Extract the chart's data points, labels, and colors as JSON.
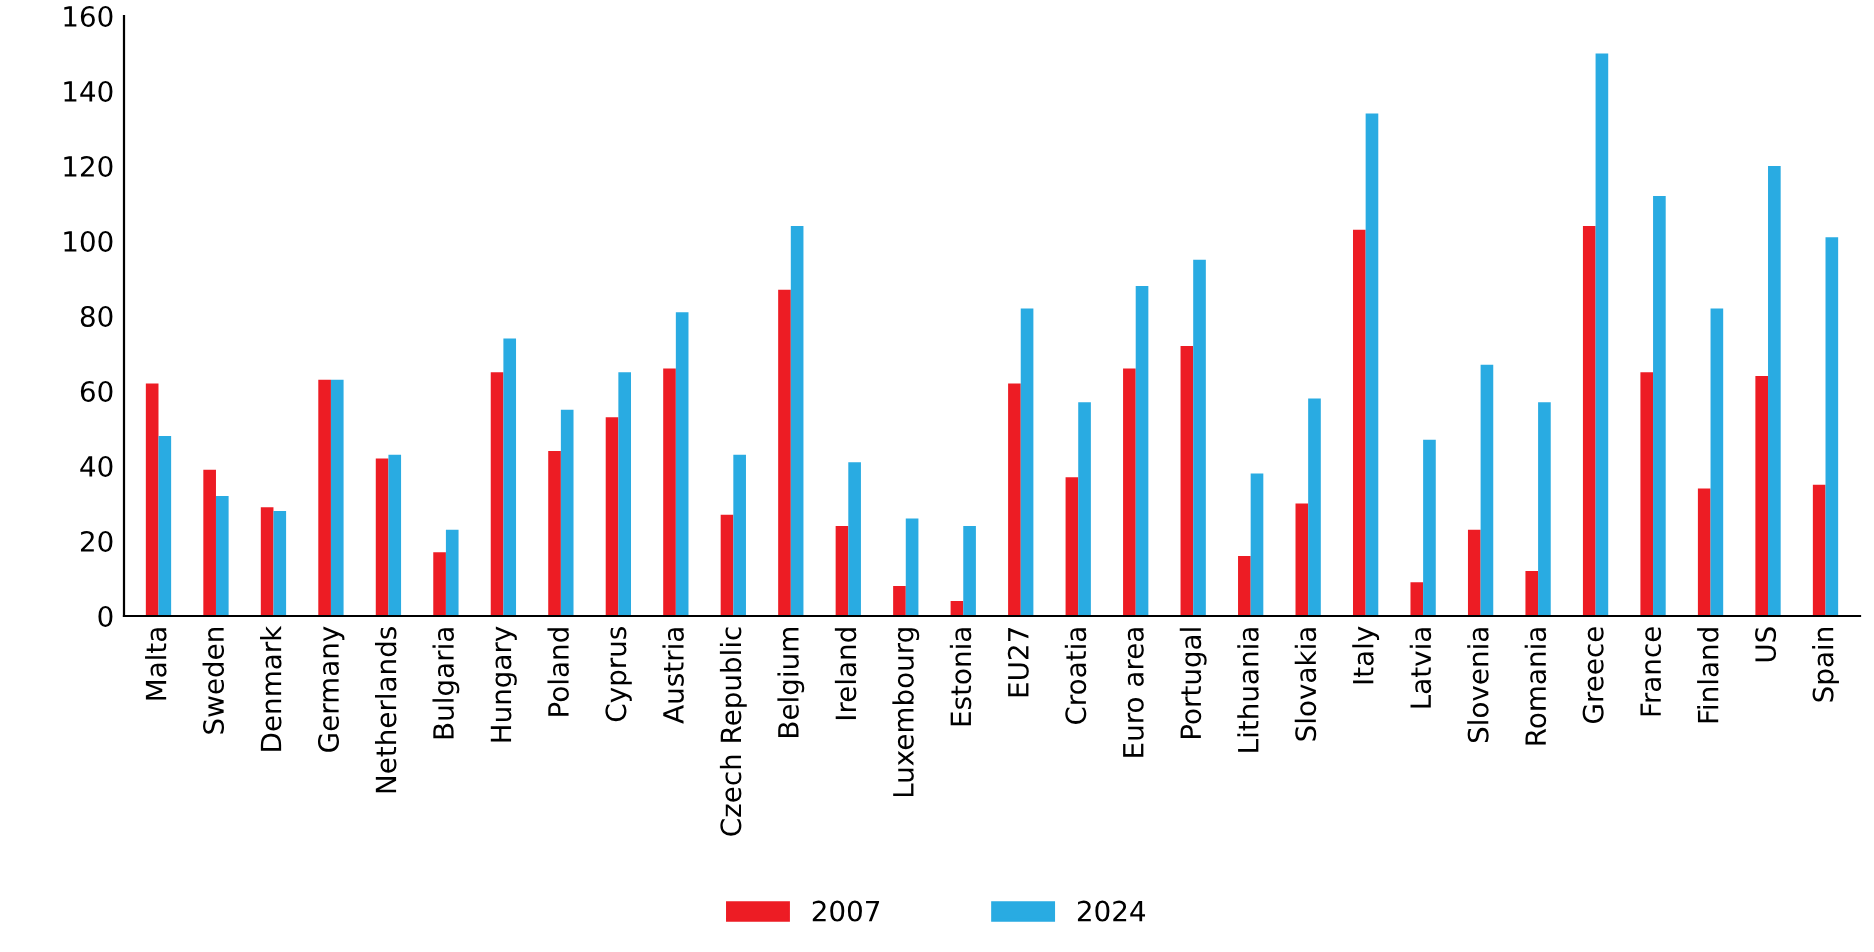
{
  "chart_data": {
    "type": "bar",
    "categories": [
      "Malta",
      "Sweden",
      "Denmark",
      "Germany",
      "Netherlands",
      "Bulgaria",
      "Hungary",
      "Poland",
      "Cyprus",
      "Austria",
      "Czech Republic",
      "Belgium",
      "Ireland",
      "Luxembourg",
      "Estonia",
      "EU27",
      "Croatia",
      "Euro area",
      "Portugal",
      "Lithuania",
      "Slovakia",
      "Italy",
      "Latvia",
      "Slovenia",
      "Romania",
      "Greece",
      "France",
      "Finland",
      "US",
      "Spain"
    ],
    "series": [
      {
        "name": "2007",
        "color": "#ed1c24",
        "values": [
          62,
          39,
          29,
          63,
          42,
          17,
          65,
          44,
          53,
          66,
          27,
          87,
          24,
          8,
          4,
          62,
          37,
          66,
          72,
          16,
          30,
          103,
          9,
          23,
          12,
          104,
          65,
          34,
          64,
          35
        ]
      },
      {
        "name": "2024",
        "color": "#29abe2",
        "values": [
          48,
          32,
          28,
          63,
          43,
          23,
          74,
          55,
          65,
          81,
          43,
          104,
          41,
          26,
          24,
          82,
          57,
          88,
          95,
          38,
          58,
          134,
          47,
          67,
          57,
          150,
          112,
          82,
          120,
          101
        ]
      }
    ],
    "ylim": [
      0,
      160
    ],
    "yticks": [
      0,
      20,
      40,
      60,
      80,
      100,
      120,
      140,
      160
    ],
    "grid": false,
    "legend": "bottom"
  }
}
